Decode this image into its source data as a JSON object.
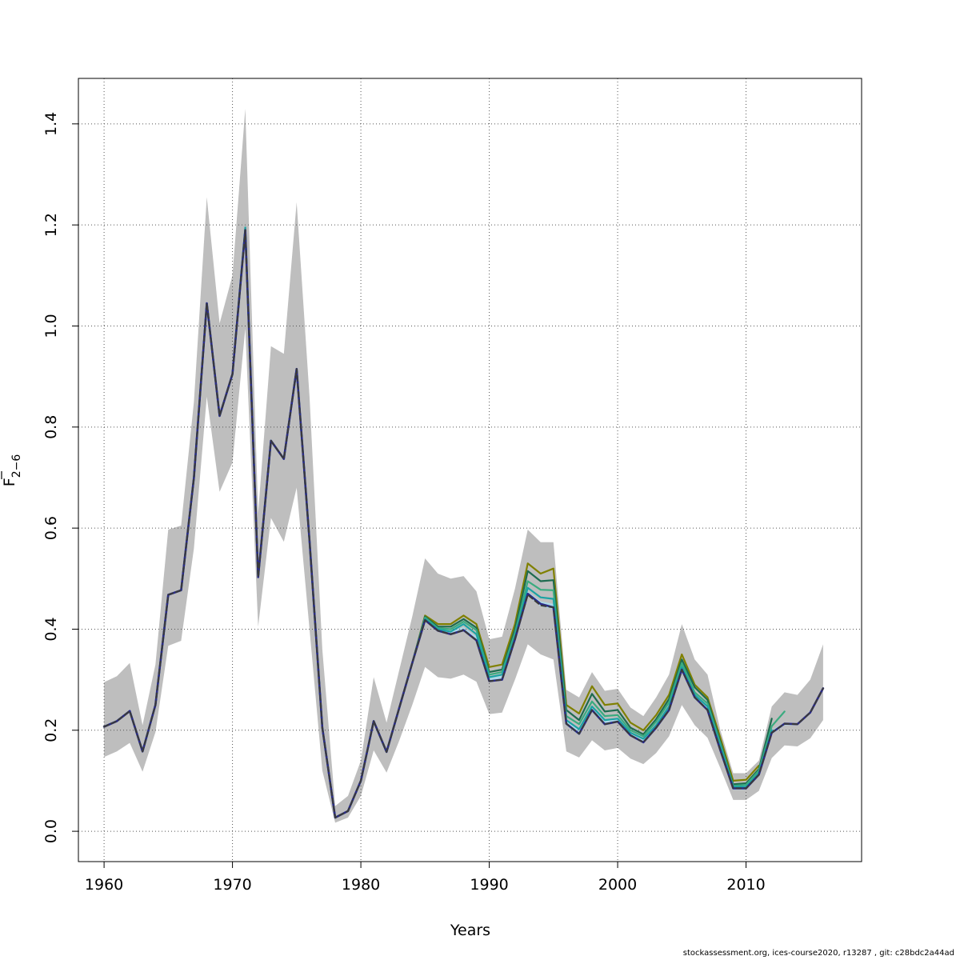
{
  "chart_data": {
    "type": "line",
    "title": "",
    "xlabel": "Years",
    "ylabel_main": "F",
    "ylabel_sub": "2−6",
    "xlim": [
      1958,
      2019
    ],
    "ylim": [
      -0.06,
      1.49
    ],
    "xticks": [
      1960,
      1970,
      1980,
      1990,
      2000,
      2010
    ],
    "xtick_labels": [
      "1960",
      "1970",
      "1980",
      "1990",
      "2000",
      "2010"
    ],
    "yticks": [
      0.0,
      0.2,
      0.4,
      0.6,
      0.8,
      1.0,
      1.2,
      1.4
    ],
    "ytick_labels": [
      "0.0",
      "0.2",
      "0.4",
      "0.6",
      "0.8",
      "1.0",
      "1.2",
      "1.4"
    ],
    "grid": true,
    "band_color": "#bebebe",
    "inner_band_color": "#add8e6",
    "years": [
      1960,
      1961,
      1962,
      1963,
      1964,
      1965,
      1966,
      1967,
      1968,
      1969,
      1970,
      1971,
      1972,
      1973,
      1974,
      1975,
      1976,
      1977,
      1978,
      1979,
      1980,
      1981,
      1982,
      1983,
      1984,
      1985,
      1986,
      1987,
      1988,
      1989,
      1990,
      1991,
      1992,
      1993,
      1994,
      1995,
      1996,
      1997,
      1998,
      1999,
      2000,
      2001,
      2002,
      2003,
      2004,
      2005,
      2006,
      2007,
      2008,
      2009,
      2010,
      2011,
      2012,
      2013,
      2014,
      2015,
      2016
    ],
    "band_upper": [
      0.295,
      0.307,
      0.333,
      0.21,
      0.33,
      0.597,
      0.605,
      0.85,
      1.255,
      1.005,
      1.1,
      1.43,
      0.63,
      0.96,
      0.945,
      1.245,
      0.86,
      0.36,
      0.05,
      0.07,
      0.14,
      0.305,
      0.215,
      0.32,
      0.425,
      0.54,
      0.51,
      0.5,
      0.505,
      0.475,
      0.38,
      0.385,
      0.48,
      0.597,
      0.572,
      0.572,
      0.28,
      0.265,
      0.315,
      0.278,
      0.282,
      0.245,
      0.228,
      0.265,
      0.31,
      0.41,
      0.34,
      0.31,
      0.2,
      0.115,
      0.115,
      0.14,
      0.247,
      0.275,
      0.27,
      0.3,
      0.37
    ],
    "band_lower": [
      0.147,
      0.158,
      0.175,
      0.118,
      0.196,
      0.367,
      0.377,
      0.56,
      0.86,
      0.672,
      0.73,
      0.995,
      0.405,
      0.62,
      0.573,
      0.68,
      0.4,
      0.12,
      0.017,
      0.027,
      0.07,
      0.16,
      0.116,
      0.18,
      0.25,
      0.325,
      0.305,
      0.302,
      0.31,
      0.296,
      0.232,
      0.235,
      0.3,
      0.37,
      0.35,
      0.34,
      0.158,
      0.146,
      0.18,
      0.16,
      0.165,
      0.144,
      0.133,
      0.155,
      0.188,
      0.25,
      0.21,
      0.185,
      0.125,
      0.062,
      0.062,
      0.08,
      0.145,
      0.17,
      0.168,
      0.184,
      0.22
    ],
    "inner_band_upper": [
      null,
      null,
      null,
      null,
      null,
      null,
      null,
      null,
      null,
      null,
      null,
      null,
      null,
      null,
      null,
      null,
      null,
      null,
      null,
      null,
      null,
      null,
      null,
      null,
      null,
      0.42,
      0.402,
      0.396,
      0.404,
      0.385,
      0.305,
      0.308,
      0.385,
      0.475,
      0.455,
      0.45,
      0.22,
      0.2,
      0.245,
      0.22,
      0.225,
      0.197,
      0.183,
      0.21,
      0.245,
      0.325,
      0.27,
      0.245,
      0.165,
      0.092,
      0.092,
      0.12,
      0.2,
      0.215,
      0.213,
      0.238,
      0.285
    ],
    "inner_band_lower": [
      null,
      null,
      null,
      null,
      null,
      null,
      null,
      null,
      null,
      null,
      null,
      null,
      null,
      null,
      null,
      null,
      null,
      null,
      null,
      null,
      null,
      null,
      null,
      null,
      null,
      0.417,
      0.395,
      0.39,
      0.397,
      0.377,
      0.296,
      0.3,
      0.377,
      0.467,
      0.445,
      0.44,
      0.21,
      0.19,
      0.237,
      0.21,
      0.215,
      0.188,
      0.174,
      0.202,
      0.237,
      0.317,
      0.262,
      0.238,
      0.158,
      0.082,
      0.082,
      0.11,
      0.192,
      0.21,
      0.21,
      0.233,
      0.28
    ],
    "series": [
      {
        "name": "",
        "color": "#808000",
        "width": 2.2,
        "dash": "",
        "start": 1960,
        "values": [
          0.207,
          0.218,
          0.238,
          0.158,
          0.25,
          0.468,
          0.477,
          0.7,
          1.045,
          0.822,
          0.905,
          1.19,
          0.503,
          0.773,
          0.737,
          0.915,
          0.575,
          0.205,
          0.027,
          0.04,
          0.1,
          0.218,
          0.157,
          0.245,
          0.333,
          0.427,
          0.41,
          0.41,
          0.427,
          0.41,
          0.325,
          0.33,
          0.41,
          0.53,
          0.51,
          0.52,
          0.25,
          0.233,
          0.287,
          0.25,
          0.253,
          0.215,
          0.2,
          0.23,
          0.27,
          0.35,
          0.29,
          0.265,
          0.185,
          0.1,
          0.102,
          0.13
        ]
      },
      {
        "name": "",
        "color": "#1e6b4f",
        "width": 2.2,
        "dash": "",
        "start": 1960,
        "values": [
          0.207,
          0.218,
          0.238,
          0.158,
          0.25,
          0.468,
          0.477,
          0.7,
          1.045,
          0.822,
          0.905,
          1.19,
          0.503,
          0.773,
          0.737,
          0.915,
          0.575,
          0.205,
          0.027,
          0.04,
          0.1,
          0.218,
          0.157,
          0.245,
          0.333,
          0.425,
          0.405,
          0.405,
          0.42,
          0.403,
          0.315,
          0.32,
          0.4,
          0.515,
          0.495,
          0.497,
          0.24,
          0.22,
          0.272,
          0.237,
          0.24,
          0.205,
          0.192,
          0.222,
          0.262,
          0.34,
          0.285,
          0.26,
          0.177,
          0.093,
          0.095,
          0.123,
          0.223
        ]
      },
      {
        "name": "",
        "color": "#3aab7f",
        "width": 2.2,
        "dash": "",
        "start": 1960,
        "values": [
          0.207,
          0.218,
          0.238,
          0.158,
          0.25,
          0.468,
          0.477,
          0.7,
          1.045,
          0.822,
          0.905,
          1.19,
          0.503,
          0.773,
          0.737,
          0.915,
          0.575,
          0.205,
          0.027,
          0.04,
          0.1,
          0.218,
          0.157,
          0.245,
          0.333,
          0.423,
          0.402,
          0.4,
          0.415,
          0.398,
          0.31,
          0.315,
          0.392,
          0.495,
          0.478,
          0.477,
          0.228,
          0.212,
          0.257,
          0.228,
          0.23,
          0.2,
          0.188,
          0.217,
          0.255,
          0.333,
          0.275,
          0.253,
          0.173,
          0.09,
          0.092,
          0.12,
          0.208,
          0.237
        ]
      },
      {
        "name": "",
        "color": "#1ba3a3",
        "width": 2.2,
        "dash": "",
        "start": 1960,
        "values": [
          0.207,
          0.218,
          0.238,
          0.158,
          0.25,
          0.468,
          0.477,
          0.7,
          1.045,
          0.822,
          0.905,
          1.195,
          0.503,
          0.773,
          0.737,
          0.915,
          0.575,
          0.205,
          0.027,
          0.04,
          0.1,
          0.218,
          0.157,
          0.245,
          0.333,
          0.42,
          0.4,
          0.395,
          0.41,
          0.39,
          0.305,
          0.31,
          0.385,
          0.482,
          0.463,
          0.46,
          0.22,
          0.202,
          0.247,
          0.22,
          0.223,
          0.195,
          0.183,
          0.21,
          0.247,
          0.325,
          0.27,
          0.247,
          0.167,
          0.088,
          0.088,
          0.115,
          0.2
        ]
      },
      {
        "name": "",
        "color": "#2a2a8a",
        "width": 2.6,
        "dash": "",
        "start": 1960,
        "values": [
          0.207,
          0.218,
          0.238,
          0.158,
          0.25,
          0.468,
          0.477,
          0.7,
          1.045,
          0.822,
          0.905,
          1.19,
          0.503,
          0.773,
          0.737,
          0.915,
          0.575,
          0.205,
          0.027,
          0.04,
          0.1,
          0.218,
          0.157,
          0.245,
          0.333,
          0.418,
          0.397,
          0.39,
          0.398,
          0.378,
          0.297,
          0.3,
          0.38,
          0.47,
          0.45,
          0.443,
          0.213,
          0.193,
          0.24,
          0.212,
          0.217,
          0.19,
          0.176,
          0.205,
          0.24,
          0.32,
          0.265,
          0.24,
          0.16,
          0.085,
          0.085,
          0.112,
          0.195,
          0.213,
          0.212,
          0.235,
          0.283
        ]
      },
      {
        "name": "",
        "color": "#3a3a3a",
        "width": 2,
        "dash": "6,4",
        "start": 1960,
        "values": [
          0.207,
          0.218,
          0.238,
          0.158,
          0.25,
          0.468,
          0.477,
          0.7,
          1.045,
          0.822,
          0.905,
          1.19,
          0.503,
          0.773,
          0.737,
          0.915,
          0.575,
          0.205,
          0.027,
          0.04,
          0.1,
          0.218,
          0.157,
          0.245,
          0.333,
          0.418,
          0.397,
          0.39,
          0.398,
          0.378,
          0.297,
          0.3,
          0.38,
          0.468,
          0.447,
          0.443,
          0.213,
          0.193,
          0.24,
          0.212,
          0.217,
          0.19,
          0.176,
          0.205,
          0.24,
          0.32,
          0.265,
          0.24,
          0.16,
          0.085,
          0.085,
          0.112,
          0.195,
          0.213,
          0.212,
          0.235,
          0.283
        ]
      }
    ]
  },
  "footer": "stockassessment.org, ices-course2020, r13287 , git: c28bdc2a44ad"
}
